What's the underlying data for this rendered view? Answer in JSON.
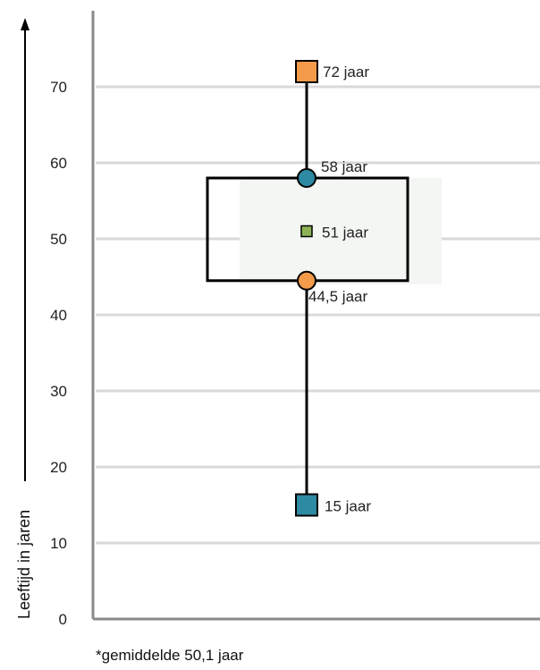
{
  "chart_data": {
    "type": "boxplot",
    "ylabel": "Leeftijd in jaren",
    "ylim": [
      0,
      80
    ],
    "yticks": [
      "0",
      "10",
      "20",
      "30",
      "40",
      "50",
      "60",
      "70"
    ],
    "grid": true,
    "points": {
      "max": {
        "value": 72,
        "label": "72 jaar",
        "color": "#F39A4B",
        "marker": "square"
      },
      "q3": {
        "value": 58,
        "label": "58 jaar",
        "color": "#2E8AA3",
        "marker": "circle"
      },
      "median": {
        "value": 51,
        "label": "51 jaar",
        "color": "#8DB255",
        "marker": "small-square"
      },
      "q1": {
        "value": 44.5,
        "label": "44,5 jaar",
        "color": "#F39A4B",
        "marker": "circle"
      },
      "min": {
        "value": 15,
        "label": "15 jaar",
        "color": "#2E8AA3",
        "marker": "square"
      }
    },
    "footnote": "*gemiddelde 50,1 jaar"
  }
}
